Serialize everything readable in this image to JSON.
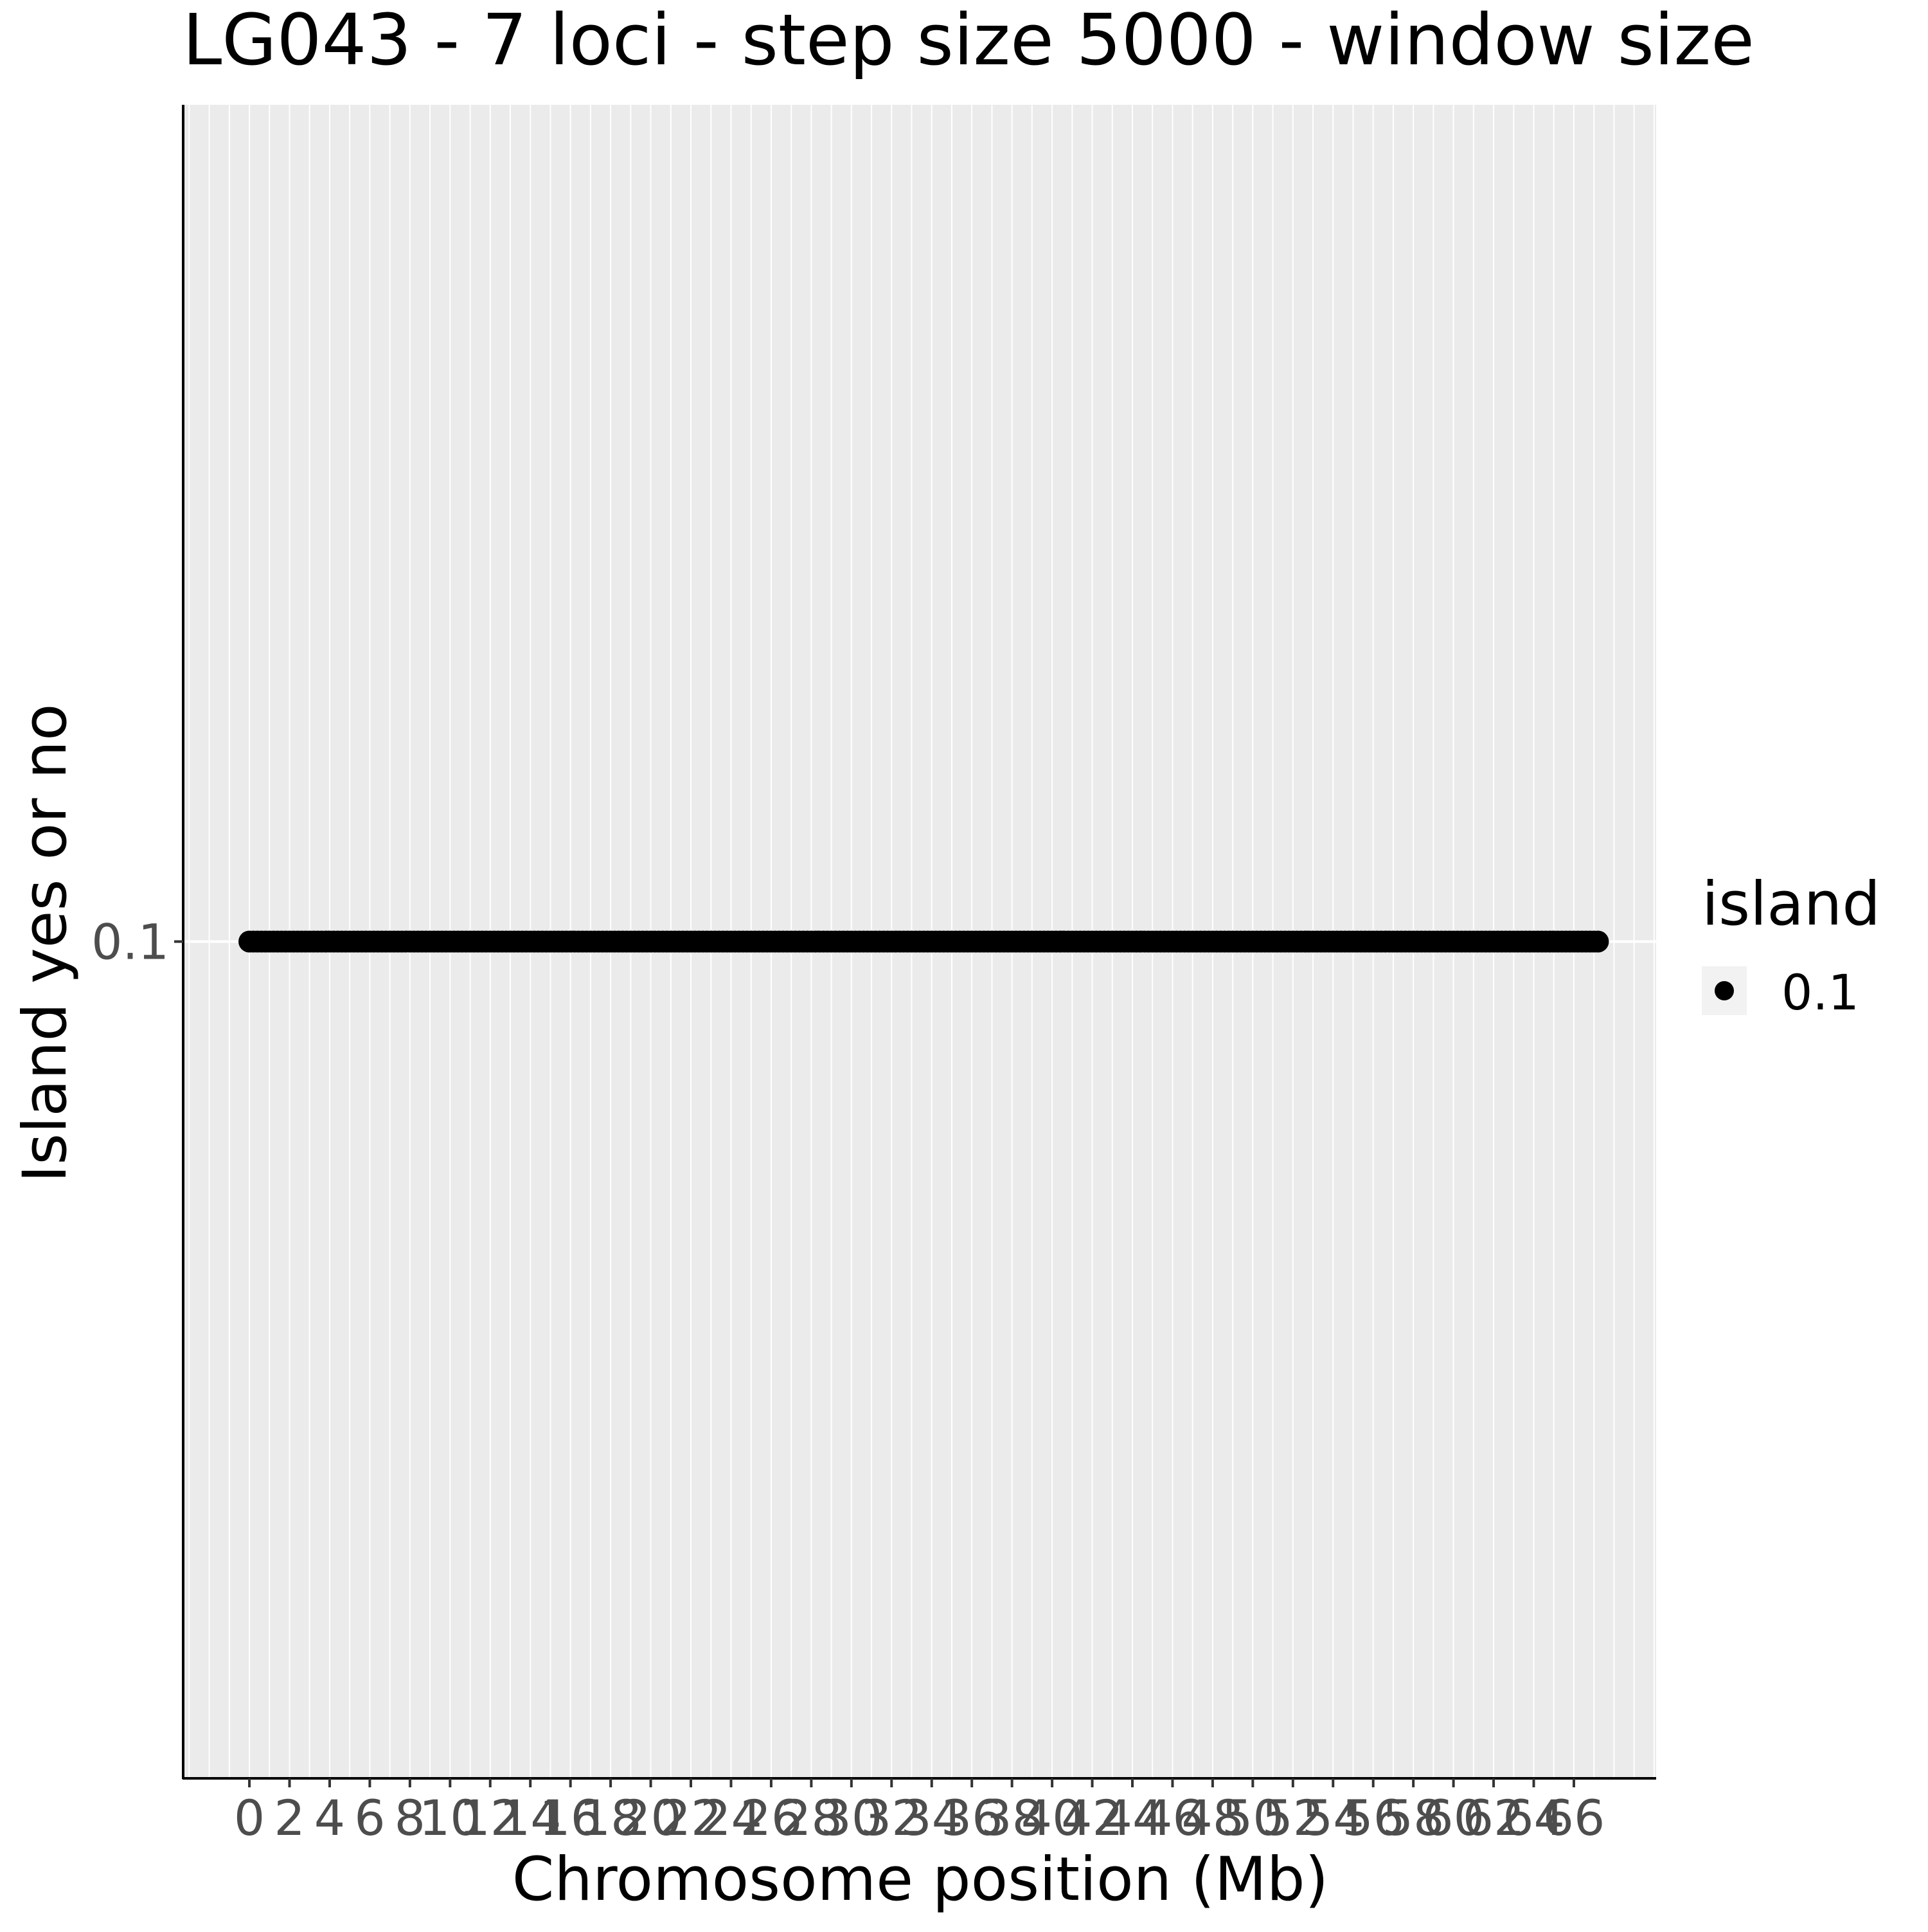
{
  "chart_data": {
    "type": "scatter",
    "title": "LG043 - 7 loci - step size 5000 - window size",
    "xlabel": "Chromosome position (Mb)",
    "ylabel": "Island yes or no",
    "x_ticks": [
      0,
      2,
      4,
      6,
      8,
      10,
      12,
      14,
      16,
      18,
      20,
      22,
      24,
      26,
      28,
      30,
      32,
      34,
      36,
      38,
      40,
      42,
      44,
      46,
      48,
      50,
      52,
      54,
      56,
      58,
      60,
      62,
      64,
      66
    ],
    "x_range": [
      -3.3,
      70.1
    ],
    "x_minor_step": 1,
    "y_ticks": [
      0.1
    ],
    "y_tick_labels": [
      "0.1"
    ],
    "y_range": [
      0.05,
      0.15
    ],
    "points_x_range": [
      0,
      67.2
    ],
    "points_step": 0.2,
    "series": [
      {
        "name": "0.1",
        "y": 0.1
      }
    ],
    "legend": {
      "title": "island",
      "entries": [
        "0.1"
      ],
      "position": "right"
    },
    "grid": true,
    "colors": {
      "panel": "#EBEBEB",
      "grid": "#FFFFFF",
      "point": "#000000",
      "tick_text": "#4D4D4D",
      "legend_key": "#F2F2F2"
    }
  }
}
